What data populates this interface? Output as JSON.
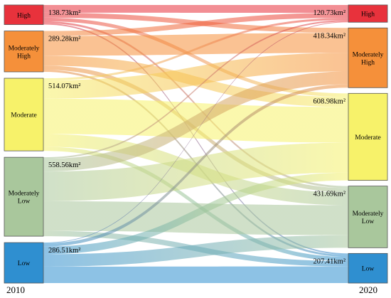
{
  "years": {
    "left": "2010",
    "right": "2020"
  },
  "nodes": [
    {
      "id": "high",
      "label": "High",
      "color": "#e8323c",
      "value_2010": 138.73,
      "value_2020": 120.73
    },
    {
      "id": "moderately-high",
      "label": "Moderately High",
      "color": "#f5903a",
      "value_2010": 289.28,
      "value_2020": 418.34
    },
    {
      "id": "moderate",
      "label": "Moderate",
      "color": "#f7f26a",
      "value_2010": 514.07,
      "value_2020": 608.98
    },
    {
      "id": "moderately-low",
      "label": "Moderately Low",
      "color": "#a9c79c",
      "value_2010": 558.56,
      "value_2020": 431.69
    },
    {
      "id": "low",
      "label": "Low",
      "color": "#2f8fd0",
      "value_2010": 286.51,
      "value_2020": 207.41
    }
  ],
  "unit": "km²",
  "value_labels_2010": [
    "138.73km²",
    "289.28km²",
    "514.07km²",
    "558.56km²",
    "286.51km²"
  ],
  "value_labels_2020": [
    "120.73km²",
    "418.34km²",
    "608.98km²",
    "431.69km²",
    "207.41km²"
  ],
  "flows": [
    {
      "from": "high",
      "to": "high",
      "value": 55
    },
    {
      "from": "high",
      "to": "moderately-high",
      "value": 35
    },
    {
      "from": "high",
      "to": "moderate",
      "value": 25
    },
    {
      "from": "high",
      "to": "moderately-low",
      "value": 14
    },
    {
      "from": "high",
      "to": "low",
      "value": 9.73
    },
    {
      "from": "moderately-high",
      "to": "high",
      "value": 35
    },
    {
      "from": "moderately-high",
      "to": "moderately-high",
      "value": 140
    },
    {
      "from": "moderately-high",
      "to": "moderate",
      "value": 70
    },
    {
      "from": "moderately-high",
      "to": "moderately-low",
      "value": 30
    },
    {
      "from": "moderately-high",
      "to": "low",
      "value": 14.28
    },
    {
      "from": "moderate",
      "to": "high",
      "value": 15
    },
    {
      "from": "moderate",
      "to": "moderately-high",
      "value": 130
    },
    {
      "from": "moderate",
      "to": "moderate",
      "value": 250
    },
    {
      "from": "moderate",
      "to": "moderately-low",
      "value": 90
    },
    {
      "from": "moderate",
      "to": "low",
      "value": 29.07
    },
    {
      "from": "moderately-low",
      "to": "high",
      "value": 10.73
    },
    {
      "from": "moderately-low",
      "to": "moderately-high",
      "value": 90
    },
    {
      "from": "moderately-low",
      "to": "moderate",
      "value": 210
    },
    {
      "from": "moderately-low",
      "to": "moderately-low",
      "value": 210
    },
    {
      "from": "moderately-low",
      "to": "low",
      "value": 37.83
    },
    {
      "from": "low",
      "to": "high",
      "value": 5
    },
    {
      "from": "low",
      "to": "moderately-high",
      "value": 23.34
    },
    {
      "from": "low",
      "to": "moderate",
      "value": 53.98
    },
    {
      "from": "low",
      "to": "moderately-low",
      "value": 87.69
    },
    {
      "from": "low",
      "to": "low",
      "value": 116.5
    }
  ]
}
